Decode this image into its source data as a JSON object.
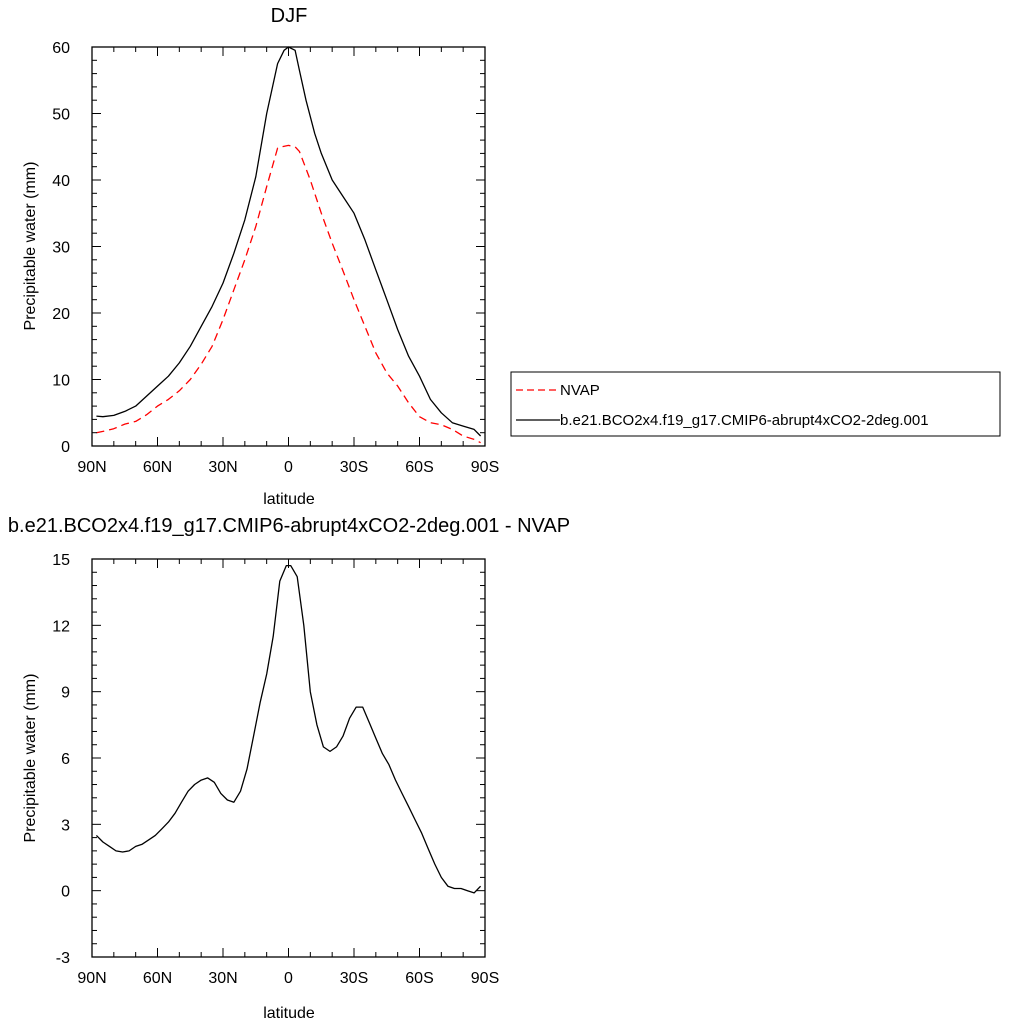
{
  "chart_data": [
    {
      "type": "line",
      "title": "DJF",
      "xlabel": "latitude",
      "ylabel": "Precipitable water (mm)",
      "xlim": [
        -90,
        90
      ],
      "ylim": [
        0,
        60
      ],
      "x_ticks": [
        {
          "value": -90,
          "label": "90N"
        },
        {
          "value": -60,
          "label": "60N"
        },
        {
          "value": -30,
          "label": "30N"
        },
        {
          "value": 0,
          "label": "0"
        },
        {
          "value": 30,
          "label": "30S"
        },
        {
          "value": 60,
          "label": "60S"
        },
        {
          "value": 90,
          "label": "90S"
        }
      ],
      "y_ticks": [
        {
          "value": 0,
          "label": "0"
        },
        {
          "value": 10,
          "label": "10"
        },
        {
          "value": 20,
          "label": "20"
        },
        {
          "value": 30,
          "label": "30"
        },
        {
          "value": 40,
          "label": "40"
        },
        {
          "value": 50,
          "label": "50"
        },
        {
          "value": 60,
          "label": "60"
        }
      ],
      "legend_position": "right",
      "series": [
        {
          "name": "NVAP",
          "color": "#ff0000",
          "dash": "dashed",
          "x": [
            -88,
            -85,
            -80,
            -75,
            -70,
            -65,
            -60,
            -55,
            -50,
            -45,
            -40,
            -35,
            -30,
            -25,
            -20,
            -15,
            -10,
            -5,
            -3,
            0,
            3,
            5,
            10,
            15,
            20,
            25,
            30,
            35,
            40,
            45,
            50,
            55,
            60,
            65,
            70,
            75,
            80,
            85,
            88
          ],
          "values": [
            2.0,
            2.2,
            2.6,
            3.3,
            3.7,
            4.7,
            6.0,
            7.0,
            8.3,
            10.0,
            12.3,
            15.0,
            19.0,
            23.5,
            28.0,
            33.0,
            39.0,
            44.8,
            45.0,
            45.2,
            45.0,
            44.3,
            40.0,
            35.0,
            30.5,
            26.3,
            22.0,
            18.0,
            14.0,
            11.0,
            9.0,
            6.5,
            4.4,
            3.5,
            3.2,
            2.5,
            1.5,
            1.0,
            0.5
          ],
          "x_clip": [
            -90,
            90
          ]
        },
        {
          "name": "b.e21.BCO2x4.f19_g17.CMIP6-abrupt4xCO2-2deg.001",
          "color": "#000000",
          "dash": "solid",
          "x": [
            -88,
            -85,
            -80,
            -75,
            -70,
            -65,
            -60,
            -55,
            -50,
            -45,
            -40,
            -35,
            -30,
            -25,
            -20,
            -15,
            -10,
            -5,
            -2,
            0,
            3,
            5,
            8,
            12,
            15,
            20,
            25,
            30,
            35,
            40,
            45,
            50,
            55,
            60,
            65,
            70,
            75,
            80,
            85,
            88
          ],
          "values": [
            4.5,
            4.4,
            4.6,
            5.2,
            6.0,
            7.5,
            9.0,
            10.5,
            12.5,
            15.0,
            18.0,
            21.0,
            24.5,
            29.0,
            34.0,
            40.5,
            50.0,
            57.5,
            59.5,
            60.0,
            59.5,
            56.5,
            52.0,
            47.0,
            44.0,
            40.0,
            37.5,
            35.0,
            31.0,
            26.5,
            22.0,
            17.5,
            13.5,
            10.5,
            7.0,
            5.0,
            3.5,
            3.0,
            2.5,
            1.5
          ],
          "x_clip": [
            -90,
            90
          ]
        }
      ]
    },
    {
      "type": "line",
      "title": "b.e21.BCO2x4.f19_g17.CMIP6-abrupt4xCO2-2deg.001 - NVAP",
      "xlabel": "latitude",
      "ylabel": "Precipitable water (mm)",
      "xlim": [
        -90,
        90
      ],
      "ylim": [
        -3,
        15
      ],
      "x_ticks": [
        {
          "value": -90,
          "label": "90N"
        },
        {
          "value": -60,
          "label": "60N"
        },
        {
          "value": -30,
          "label": "30N"
        },
        {
          "value": 0,
          "label": "0"
        },
        {
          "value": 30,
          "label": "30S"
        },
        {
          "value": 60,
          "label": "60S"
        },
        {
          "value": 90,
          "label": "90S"
        }
      ],
      "y_ticks": [
        {
          "value": -3,
          "label": "-3"
        },
        {
          "value": 0,
          "label": "0"
        },
        {
          "value": 3,
          "label": "3"
        },
        {
          "value": 6,
          "label": "6"
        },
        {
          "value": 9,
          "label": "9"
        },
        {
          "value": 12,
          "label": "12"
        },
        {
          "value": 15,
          "label": "15"
        }
      ],
      "series": [
        {
          "color": "#000000",
          "dash": "solid",
          "x": [
            -88,
            -85,
            -82,
            -79,
            -76,
            -73,
            -70,
            -67,
            -64,
            -61,
            -58,
            -55,
            -52,
            -49,
            -46,
            -43,
            -40,
            -37,
            -34,
            -31,
            -28,
            -25,
            -22,
            -19,
            -16,
            -13,
            -10,
            -7,
            -4,
            -1,
            1,
            4,
            7,
            10,
            13,
            16,
            19,
            22,
            25,
            28,
            31,
            34,
            37,
            40,
            43,
            46,
            49,
            52,
            55,
            58,
            61,
            64,
            67,
            70,
            73,
            76,
            79,
            82,
            85,
            88
          ],
          "values": [
            2.5,
            2.2,
            2.0,
            1.8,
            1.75,
            1.8,
            2.0,
            2.1,
            2.3,
            2.5,
            2.8,
            3.1,
            3.5,
            4.0,
            4.5,
            4.8,
            5.0,
            5.1,
            4.9,
            4.4,
            4.1,
            4.0,
            4.5,
            5.5,
            7.0,
            8.5,
            9.8,
            11.5,
            14.0,
            14.7,
            14.7,
            14.2,
            12.0,
            9.0,
            7.5,
            6.5,
            6.3,
            6.5,
            7.0,
            7.8,
            8.3,
            8.3,
            7.6,
            6.9,
            6.2,
            5.7,
            5.0,
            4.4,
            3.8,
            3.2,
            2.6,
            1.9,
            1.2,
            0.6,
            0.2,
            0.1,
            0.1,
            0.0,
            -0.1,
            0.2
          ],
          "x_clip": [
            -90,
            90
          ]
        }
      ]
    }
  ]
}
